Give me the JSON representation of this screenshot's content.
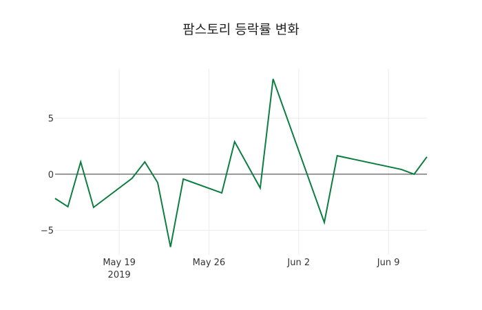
{
  "chart_data": {
    "type": "line",
    "title": "팜스토리 등락률 변화",
    "xlabel": "",
    "ylabel": "",
    "x": [
      "2019-05-14",
      "2019-05-15",
      "2019-05-16",
      "2019-05-17",
      "2019-05-20",
      "2019-05-21",
      "2019-05-22",
      "2019-05-23",
      "2019-05-24",
      "2019-05-27",
      "2019-05-28",
      "2019-05-30",
      "2019-05-31",
      "2019-06-04",
      "2019-06-05",
      "2019-06-10",
      "2019-06-11",
      "2019-06-12"
    ],
    "series": [
      {
        "name": "등락률",
        "color": "#0a7d3f",
        "values": [
          -2.16,
          -2.9,
          1.1,
          -2.96,
          -0.37,
          1.1,
          -0.75,
          -6.5,
          -0.43,
          -1.67,
          2.9,
          -1.23,
          8.5,
          -4.3,
          1.65,
          0.43,
          0.0,
          1.55
        ]
      }
    ],
    "xrange": [
      "2019-05-14",
      "2019-06-12"
    ],
    "ylim": [
      -7.2,
      9.4
    ],
    "y_ticks": [
      5,
      0,
      -5
    ],
    "y_tick_labels": [
      "5",
      "0",
      "−5"
    ],
    "x_ticks": [
      "2019-05-19",
      "2019-05-26",
      "2019-06-02",
      "2019-06-09"
    ],
    "x_tick_labels": [
      "May 19",
      "May 26",
      "Jun 2",
      "Jun 9"
    ],
    "x_tick_sublabel": "2019",
    "grid": true,
    "zero_line": true,
    "legend": "none"
  }
}
